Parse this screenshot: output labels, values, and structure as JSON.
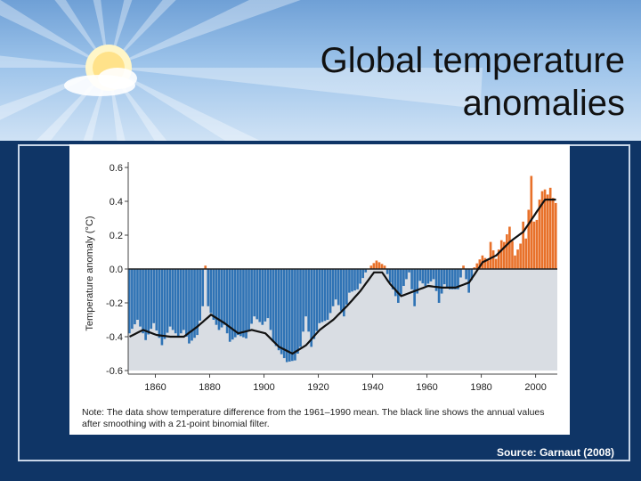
{
  "slide": {
    "title": "Global temperature anomalies",
    "source": "Source:  Garnaut (2008)"
  },
  "colors": {
    "background": "#0f3566",
    "positive_bar": "#e8712a",
    "negative_bar": "#2f73b5",
    "smooth_line": "#111111"
  },
  "icons": [
    "sun-icon",
    "cloud-icon"
  ],
  "chart_data": {
    "type": "bar",
    "title": "",
    "xlabel": "",
    "ylabel": "Temperature anomaly (°C)",
    "ylim": [
      -0.6,
      0.6
    ],
    "xlim": [
      1850,
      2008
    ],
    "yticks": [
      "0.6",
      "0.4",
      "0.2",
      "0.0",
      "-0.2",
      "-0.4",
      "-0.6"
    ],
    "xticks": [
      "1860",
      "1880",
      "1900",
      "1920",
      "1940",
      "1960",
      "1980",
      "2000"
    ],
    "note": "Note: The data show temperature difference from the 1961–1990 mean. The black line shows the annual values after smoothing with a 21-point binomial filter.",
    "anomaly_keyframes": [
      [
        1850,
        -0.38
      ],
      [
        1853,
        -0.3
      ],
      [
        1856,
        -0.42
      ],
      [
        1859,
        -0.32
      ],
      [
        1862,
        -0.45
      ],
      [
        1865,
        -0.34
      ],
      [
        1868,
        -0.4
      ],
      [
        1870,
        -0.36
      ],
      [
        1872,
        -0.44
      ],
      [
        1875,
        -0.39
      ],
      [
        1877,
        -0.22
      ],
      [
        1878,
        0.02
      ],
      [
        1879,
        -0.22
      ],
      [
        1881,
        -0.3
      ],
      [
        1883,
        -0.36
      ],
      [
        1885,
        -0.33
      ],
      [
        1887,
        -0.43
      ],
      [
        1890,
        -0.39
      ],
      [
        1893,
        -0.41
      ],
      [
        1896,
        -0.28
      ],
      [
        1899,
        -0.33
      ],
      [
        1901,
        -0.29
      ],
      [
        1903,
        -0.43
      ],
      [
        1905,
        -0.48
      ],
      [
        1908,
        -0.55
      ],
      [
        1911,
        -0.54
      ],
      [
        1913,
        -0.46
      ],
      [
        1915,
        -0.28
      ],
      [
        1917,
        -0.46
      ],
      [
        1920,
        -0.32
      ],
      [
        1923,
        -0.3
      ],
      [
        1926,
        -0.18
      ],
      [
        1929,
        -0.28
      ],
      [
        1931,
        -0.14
      ],
      [
        1934,
        -0.12
      ],
      [
        1937,
        -0.02
      ],
      [
        1939,
        0.02
      ],
      [
        1941,
        0.05
      ],
      [
        1944,
        0.02
      ],
      [
        1946,
        -0.08
      ],
      [
        1949,
        -0.2
      ],
      [
        1951,
        -0.1
      ],
      [
        1953,
        -0.02
      ],
      [
        1955,
        -0.22
      ],
      [
        1957,
        -0.07
      ],
      [
        1959,
        -0.1
      ],
      [
        1962,
        -0.06
      ],
      [
        1964,
        -0.2
      ],
      [
        1966,
        -0.09
      ],
      [
        1968,
        -0.12
      ],
      [
        1971,
        -0.12
      ],
      [
        1973,
        0.02
      ],
      [
        1975,
        -0.14
      ],
      [
        1977,
        0.01
      ],
      [
        1980,
        0.08
      ],
      [
        1982,
        0.05
      ],
      [
        1983,
        0.16
      ],
      [
        1985,
        0.06
      ],
      [
        1987,
        0.17
      ],
      [
        1988,
        0.16
      ],
      [
        1990,
        0.25
      ],
      [
        1992,
        0.08
      ],
      [
        1994,
        0.15
      ],
      [
        1995,
        0.28
      ],
      [
        1996,
        0.18
      ],
      [
        1997,
        0.35
      ],
      [
        1998,
        0.55
      ],
      [
        1999,
        0.28
      ],
      [
        2000,
        0.29
      ],
      [
        2001,
        0.41
      ],
      [
        2002,
        0.46
      ],
      [
        2003,
        0.47
      ],
      [
        2004,
        0.44
      ],
      [
        2005,
        0.48
      ],
      [
        2006,
        0.42
      ],
      [
        2007,
        0.39
      ]
    ],
    "smooth_keyframes": [
      [
        1850,
        -0.4
      ],
      [
        1855,
        -0.36
      ],
      [
        1860,
        -0.39
      ],
      [
        1865,
        -0.4
      ],
      [
        1870,
        -0.4
      ],
      [
        1875,
        -0.34
      ],
      [
        1880,
        -0.27
      ],
      [
        1885,
        -0.32
      ],
      [
        1890,
        -0.38
      ],
      [
        1895,
        -0.36
      ],
      [
        1900,
        -0.38
      ],
      [
        1905,
        -0.46
      ],
      [
        1910,
        -0.5
      ],
      [
        1915,
        -0.45
      ],
      [
        1920,
        -0.36
      ],
      [
        1925,
        -0.3
      ],
      [
        1930,
        -0.22
      ],
      [
        1935,
        -0.13
      ],
      [
        1940,
        -0.02
      ],
      [
        1943,
        -0.02
      ],
      [
        1946,
        -0.09
      ],
      [
        1950,
        -0.16
      ],
      [
        1955,
        -0.13
      ],
      [
        1960,
        -0.1
      ],
      [
        1965,
        -0.11
      ],
      [
        1970,
        -0.11
      ],
      [
        1975,
        -0.08
      ],
      [
        1980,
        0.04
      ],
      [
        1985,
        0.08
      ],
      [
        1990,
        0.16
      ],
      [
        1995,
        0.22
      ],
      [
        2000,
        0.34
      ],
      [
        2003,
        0.41
      ],
      [
        2007,
        0.41
      ]
    ]
  }
}
